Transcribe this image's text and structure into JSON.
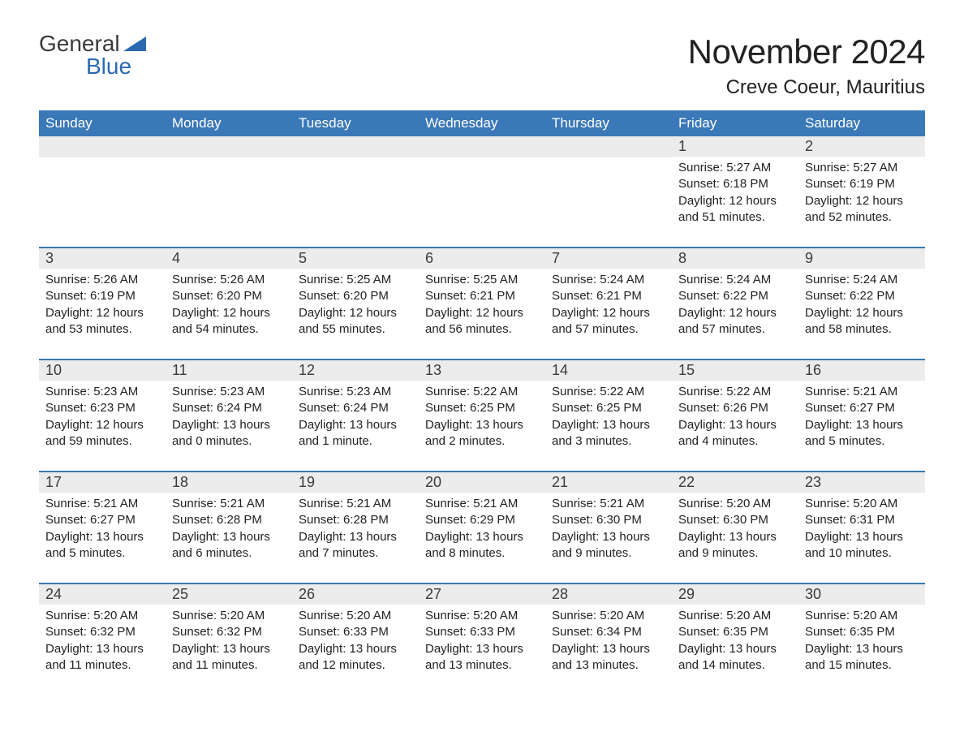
{
  "logo": {
    "text_general": "General",
    "text_blue": "Blue",
    "brand_color": "#2a6ab0",
    "general_color": "#3a3a3a"
  },
  "title": "November 2024",
  "location": "Creve Coeur, Mauritius",
  "colors": {
    "header_bg": "#3b78b8",
    "header_text": "#ffffff",
    "daynum_bg": "#ececec",
    "daynum_text": "#3a3a3a",
    "body_text": "#222222",
    "row_border": "#3b78b8",
    "page_bg": "#ffffff"
  },
  "weekdays": [
    "Sunday",
    "Monday",
    "Tuesday",
    "Wednesday",
    "Thursday",
    "Friday",
    "Saturday"
  ],
  "weeks": [
    [
      {
        "empty": true
      },
      {
        "empty": true
      },
      {
        "empty": true
      },
      {
        "empty": true
      },
      {
        "empty": true
      },
      {
        "day": "1",
        "sunrise": "Sunrise: 5:27 AM",
        "sunset": "Sunset: 6:18 PM",
        "daylight1": "Daylight: 12 hours",
        "daylight2": "and 51 minutes."
      },
      {
        "day": "2",
        "sunrise": "Sunrise: 5:27 AM",
        "sunset": "Sunset: 6:19 PM",
        "daylight1": "Daylight: 12 hours",
        "daylight2": "and 52 minutes."
      }
    ],
    [
      {
        "day": "3",
        "sunrise": "Sunrise: 5:26 AM",
        "sunset": "Sunset: 6:19 PM",
        "daylight1": "Daylight: 12 hours",
        "daylight2": "and 53 minutes."
      },
      {
        "day": "4",
        "sunrise": "Sunrise: 5:26 AM",
        "sunset": "Sunset: 6:20 PM",
        "daylight1": "Daylight: 12 hours",
        "daylight2": "and 54 minutes."
      },
      {
        "day": "5",
        "sunrise": "Sunrise: 5:25 AM",
        "sunset": "Sunset: 6:20 PM",
        "daylight1": "Daylight: 12 hours",
        "daylight2": "and 55 minutes."
      },
      {
        "day": "6",
        "sunrise": "Sunrise: 5:25 AM",
        "sunset": "Sunset: 6:21 PM",
        "daylight1": "Daylight: 12 hours",
        "daylight2": "and 56 minutes."
      },
      {
        "day": "7",
        "sunrise": "Sunrise: 5:24 AM",
        "sunset": "Sunset: 6:21 PM",
        "daylight1": "Daylight: 12 hours",
        "daylight2": "and 57 minutes."
      },
      {
        "day": "8",
        "sunrise": "Sunrise: 5:24 AM",
        "sunset": "Sunset: 6:22 PM",
        "daylight1": "Daylight: 12 hours",
        "daylight2": "and 57 minutes."
      },
      {
        "day": "9",
        "sunrise": "Sunrise: 5:24 AM",
        "sunset": "Sunset: 6:22 PM",
        "daylight1": "Daylight: 12 hours",
        "daylight2": "and 58 minutes."
      }
    ],
    [
      {
        "day": "10",
        "sunrise": "Sunrise: 5:23 AM",
        "sunset": "Sunset: 6:23 PM",
        "daylight1": "Daylight: 12 hours",
        "daylight2": "and 59 minutes."
      },
      {
        "day": "11",
        "sunrise": "Sunrise: 5:23 AM",
        "sunset": "Sunset: 6:24 PM",
        "daylight1": "Daylight: 13 hours",
        "daylight2": "and 0 minutes."
      },
      {
        "day": "12",
        "sunrise": "Sunrise: 5:23 AM",
        "sunset": "Sunset: 6:24 PM",
        "daylight1": "Daylight: 13 hours",
        "daylight2": "and 1 minute."
      },
      {
        "day": "13",
        "sunrise": "Sunrise: 5:22 AM",
        "sunset": "Sunset: 6:25 PM",
        "daylight1": "Daylight: 13 hours",
        "daylight2": "and 2 minutes."
      },
      {
        "day": "14",
        "sunrise": "Sunrise: 5:22 AM",
        "sunset": "Sunset: 6:25 PM",
        "daylight1": "Daylight: 13 hours",
        "daylight2": "and 3 minutes."
      },
      {
        "day": "15",
        "sunrise": "Sunrise: 5:22 AM",
        "sunset": "Sunset: 6:26 PM",
        "daylight1": "Daylight: 13 hours",
        "daylight2": "and 4 minutes."
      },
      {
        "day": "16",
        "sunrise": "Sunrise: 5:21 AM",
        "sunset": "Sunset: 6:27 PM",
        "daylight1": "Daylight: 13 hours",
        "daylight2": "and 5 minutes."
      }
    ],
    [
      {
        "day": "17",
        "sunrise": "Sunrise: 5:21 AM",
        "sunset": "Sunset: 6:27 PM",
        "daylight1": "Daylight: 13 hours",
        "daylight2": "and 5 minutes."
      },
      {
        "day": "18",
        "sunrise": "Sunrise: 5:21 AM",
        "sunset": "Sunset: 6:28 PM",
        "daylight1": "Daylight: 13 hours",
        "daylight2": "and 6 minutes."
      },
      {
        "day": "19",
        "sunrise": "Sunrise: 5:21 AM",
        "sunset": "Sunset: 6:28 PM",
        "daylight1": "Daylight: 13 hours",
        "daylight2": "and 7 minutes."
      },
      {
        "day": "20",
        "sunrise": "Sunrise: 5:21 AM",
        "sunset": "Sunset: 6:29 PM",
        "daylight1": "Daylight: 13 hours",
        "daylight2": "and 8 minutes."
      },
      {
        "day": "21",
        "sunrise": "Sunrise: 5:21 AM",
        "sunset": "Sunset: 6:30 PM",
        "daylight1": "Daylight: 13 hours",
        "daylight2": "and 9 minutes."
      },
      {
        "day": "22",
        "sunrise": "Sunrise: 5:20 AM",
        "sunset": "Sunset: 6:30 PM",
        "daylight1": "Daylight: 13 hours",
        "daylight2": "and 9 minutes."
      },
      {
        "day": "23",
        "sunrise": "Sunrise: 5:20 AM",
        "sunset": "Sunset: 6:31 PM",
        "daylight1": "Daylight: 13 hours",
        "daylight2": "and 10 minutes."
      }
    ],
    [
      {
        "day": "24",
        "sunrise": "Sunrise: 5:20 AM",
        "sunset": "Sunset: 6:32 PM",
        "daylight1": "Daylight: 13 hours",
        "daylight2": "and 11 minutes."
      },
      {
        "day": "25",
        "sunrise": "Sunrise: 5:20 AM",
        "sunset": "Sunset: 6:32 PM",
        "daylight1": "Daylight: 13 hours",
        "daylight2": "and 11 minutes."
      },
      {
        "day": "26",
        "sunrise": "Sunrise: 5:20 AM",
        "sunset": "Sunset: 6:33 PM",
        "daylight1": "Daylight: 13 hours",
        "daylight2": "and 12 minutes."
      },
      {
        "day": "27",
        "sunrise": "Sunrise: 5:20 AM",
        "sunset": "Sunset: 6:33 PM",
        "daylight1": "Daylight: 13 hours",
        "daylight2": "and 13 minutes."
      },
      {
        "day": "28",
        "sunrise": "Sunrise: 5:20 AM",
        "sunset": "Sunset: 6:34 PM",
        "daylight1": "Daylight: 13 hours",
        "daylight2": "and 13 minutes."
      },
      {
        "day": "29",
        "sunrise": "Sunrise: 5:20 AM",
        "sunset": "Sunset: 6:35 PM",
        "daylight1": "Daylight: 13 hours",
        "daylight2": "and 14 minutes."
      },
      {
        "day": "30",
        "sunrise": "Sunrise: 5:20 AM",
        "sunset": "Sunset: 6:35 PM",
        "daylight1": "Daylight: 13 hours",
        "daylight2": "and 15 minutes."
      }
    ]
  ]
}
